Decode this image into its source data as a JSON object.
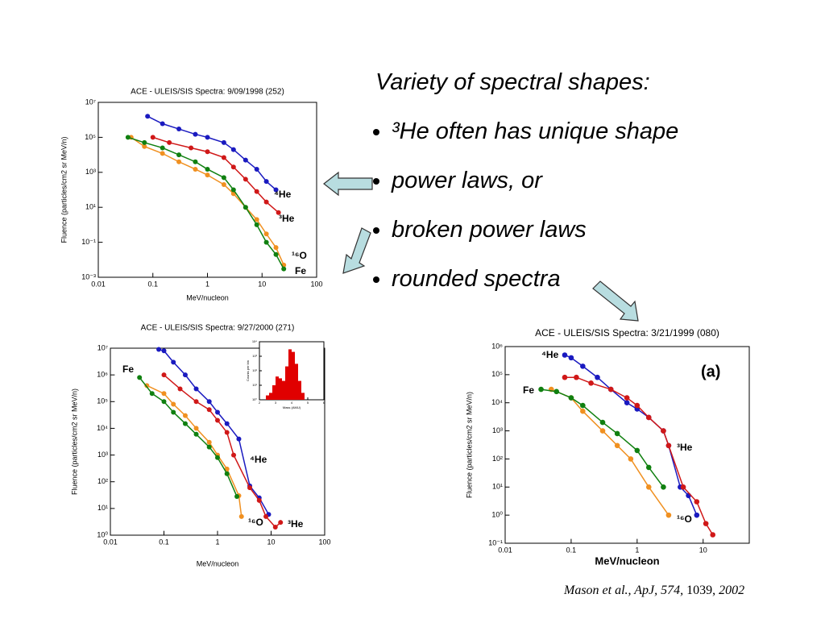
{
  "chart_data": [
    {
      "type": "line",
      "title": "ACE - ULEIS/SIS  Spectra:     9/09/1998  (252)",
      "x_label": "MeV/nucleon",
      "y_label": "Fluence (particles/cm2 sr MeV/n)",
      "log_x": true,
      "log_y": true,
      "xlim": [
        0.01,
        100
      ],
      "ylim": [
        0.001,
        10000000
      ],
      "xticks": [
        0.01,
        0.1,
        1,
        10,
        100
      ],
      "yticks": [
        {
          "value": 0.001,
          "label": "10⁻³"
        },
        {
          "value": 0.1,
          "label": "10⁻¹"
        },
        {
          "value": 10,
          "label": "10¹"
        },
        {
          "value": 1000,
          "label": "10³"
        },
        {
          "value": 100000,
          "label": "10⁵"
        },
        {
          "value": 10000000,
          "label": "10⁷"
        }
      ],
      "series": [
        {
          "name": "⁴He",
          "color": "#1a1ac0",
          "x": [
            0.08,
            0.15,
            0.3,
            0.6,
            1,
            2,
            3,
            5,
            8,
            12,
            18
          ],
          "values": [
            1600000,
            600000,
            300000,
            150000,
            100000,
            50000,
            20000,
            5000,
            1500,
            300,
            100
          ]
        },
        {
          "name": "³He",
          "color": "#d01818",
          "x": [
            0.1,
            0.2,
            0.5,
            1,
            2,
            3,
            5,
            8,
            12,
            20
          ],
          "values": [
            100000,
            50000,
            25000,
            15000,
            7000,
            2000,
            400,
            80,
            20,
            5
          ]
        },
        {
          "name": "¹⁶O",
          "color": "#f09020",
          "x": [
            0.04,
            0.07,
            0.15,
            0.3,
            0.6,
            1,
            2,
            3,
            5,
            8,
            12,
            18,
            25
          ],
          "values": [
            100000,
            30000,
            12000,
            4000,
            1500,
            700,
            200,
            60,
            10,
            2,
            0.3,
            0.05,
            0.005
          ]
        },
        {
          "name": "Fe",
          "color": "#108010",
          "x": [
            0.035,
            0.07,
            0.15,
            0.3,
            0.6,
            1,
            2,
            3,
            5,
            8,
            12,
            18,
            25
          ],
          "values": [
            100000,
            50000,
            25000,
            10000,
            4000,
            1500,
            500,
            100,
            10,
            1,
            0.1,
            0.02,
            0.003
          ]
        }
      ]
    },
    {
      "type": "line",
      "title": "ACE - ULEIS/SIS  Spectra:     9/27/2000  (271)",
      "x_label": "MeV/nucleon",
      "y_label": "Fluence (particles/cm2 sr MeV/n)",
      "log_x": true,
      "log_y": true,
      "xlim": [
        0.01,
        100
      ],
      "ylim": [
        1,
        10000000
      ],
      "xticks": [
        0.01,
        0.1,
        1,
        10,
        100
      ],
      "yticks": [
        {
          "value": 1,
          "label": "10⁰"
        },
        {
          "value": 10,
          "label": "10¹"
        },
        {
          "value": 100,
          "label": "10²"
        },
        {
          "value": 1000,
          "label": "10³"
        },
        {
          "value": 10000,
          "label": "10⁴"
        },
        {
          "value": 100000,
          "label": "10⁵"
        },
        {
          "value": 1000000,
          "label": "10⁶"
        },
        {
          "value": 10000000,
          "label": "10⁷"
        }
      ],
      "series": [
        {
          "name": "⁴He",
          "color": "#1a1ac0",
          "x": [
            0.08,
            0.1,
            0.15,
            0.25,
            0.4,
            0.7,
            1,
            1.5,
            2.5,
            4,
            6,
            9
          ],
          "values": [
            9000000,
            8000000,
            3000000,
            1000000,
            300000,
            100000,
            40000,
            15000,
            4000,
            70,
            25,
            6
          ]
        },
        {
          "name": "³He",
          "color": "#d01818",
          "x": [
            0.1,
            0.2,
            0.4,
            0.7,
            1,
            1.5,
            2,
            4,
            6,
            8,
            12,
            15
          ],
          "values": [
            1000000,
            300000,
            100000,
            50000,
            20000,
            7000,
            1000,
            60,
            20,
            5,
            2,
            3
          ]
        },
        {
          "name": "¹⁶O",
          "color": "#f09020",
          "x": [
            0.048,
            0.1,
            0.15,
            0.25,
            0.4,
            0.7,
            1,
            1.5,
            2.5,
            2.8
          ],
          "values": [
            400000,
            200000,
            80000,
            30000,
            10000,
            3000,
            1000,
            300,
            30,
            5
          ]
        },
        {
          "name": "Fe",
          "color": "#108010",
          "x": [
            0.035,
            0.06,
            0.1,
            0.15,
            0.25,
            0.4,
            0.7,
            1,
            1.5,
            2.3
          ],
          "values": [
            800000,
            200000,
            100000,
            40000,
            15000,
            6000,
            2000,
            800,
            200,
            28
          ]
        }
      ]
    },
    {
      "type": "histogram",
      "x_label": "Mass (AMU)",
      "y_label": "Counts per bin",
      "log_y": true,
      "xlim": [
        2,
        6
      ],
      "ylim": [
        1,
        10000
      ],
      "xticks": [
        2,
        3,
        4,
        5,
        6
      ],
      "yticks": [
        {
          "value": 1,
          "label": "10⁰"
        },
        {
          "value": 10,
          "label": "10¹"
        },
        {
          "value": 100,
          "label": "10²"
        },
        {
          "value": 1000,
          "label": "10³"
        },
        {
          "value": 10000,
          "label": "10⁴"
        }
      ],
      "color": "#e00000",
      "bins": [
        2,
        2.2,
        2.4,
        2.6,
        2.8,
        3,
        3.2,
        3.4,
        3.6,
        3.8,
        4,
        4.2,
        4.4,
        4.6,
        4.8,
        5,
        5.2,
        5.4,
        5.6,
        5.8,
        6
      ],
      "values": [
        1,
        1,
        2,
        3,
        10,
        40,
        30,
        20,
        200,
        3000,
        2000,
        300,
        20,
        3,
        1,
        1,
        1,
        1,
        1,
        1
      ]
    },
    {
      "type": "line",
      "title": "ACE - ULEIS/SIS  Spectra:     3/21/1999  (080)",
      "x_label": "MeV/nucleon",
      "y_label": "Fluence (particles/cm2 sr MeV/n)",
      "annotation": "(a)",
      "log_x": true,
      "log_y": true,
      "xlim": [
        0.01,
        50
      ],
      "ylim": [
        0.1,
        1000000
      ],
      "xticks": [
        0.01,
        0.1,
        1,
        10
      ],
      "yticks": [
        {
          "value": 0.1,
          "label": "10⁻¹"
        },
        {
          "value": 1,
          "label": "10⁰"
        },
        {
          "value": 10,
          "label": "10¹"
        },
        {
          "value": 100,
          "label": "10²"
        },
        {
          "value": 1000,
          "label": "10³"
        },
        {
          "value": 10000,
          "label": "10⁴"
        },
        {
          "value": 100000,
          "label": "10⁵"
        },
        {
          "value": 1000000,
          "label": "10⁶"
        }
      ],
      "series": [
        {
          "name": "⁴He",
          "color": "#1a1ac0",
          "x": [
            0.08,
            0.1,
            0.15,
            0.25,
            0.4,
            0.7,
            1,
            1.5,
            2.5,
            3,
            4.5,
            6,
            8
          ],
          "values": [
            500000,
            400000,
            200000,
            80000,
            30000,
            10000,
            6000,
            3000,
            1000,
            300,
            10,
            5,
            1
          ]
        },
        {
          "name": "³He",
          "color": "#d01818",
          "x": [
            0.08,
            0.12,
            0.2,
            0.4,
            0.7,
            1,
            1.5,
            2.5,
            3,
            5,
            8,
            11,
            14
          ],
          "values": [
            80000,
            80000,
            50000,
            30000,
            15000,
            8000,
            3000,
            1000,
            300,
            10,
            3,
            0.5,
            0.2
          ]
        },
        {
          "name": "¹⁶O",
          "color": "#f09020",
          "x": [
            0.05,
            0.1,
            0.15,
            0.3,
            0.5,
            0.8,
            1.5,
            3
          ],
          "values": [
            30000,
            15000,
            5000,
            1000,
            300,
            100,
            10,
            1
          ]
        },
        {
          "name": "Fe",
          "color": "#108010",
          "x": [
            0.035,
            0.06,
            0.1,
            0.15,
            0.3,
            0.5,
            1,
            1.5,
            2.5
          ],
          "values": [
            30000,
            25000,
            15000,
            8000,
            2000,
            800,
            200,
            50,
            10
          ]
        }
      ]
    }
  ],
  "text": {
    "heading": "Variety of spectral shapes:",
    "bullets": [
      "³He often has unique shape",
      "power laws, or",
      "broken power laws",
      "rounded spectra"
    ],
    "citation": {
      "authors": "Mason et al., ApJ, 574,",
      "page": "1039,",
      "year": "2002"
    }
  }
}
